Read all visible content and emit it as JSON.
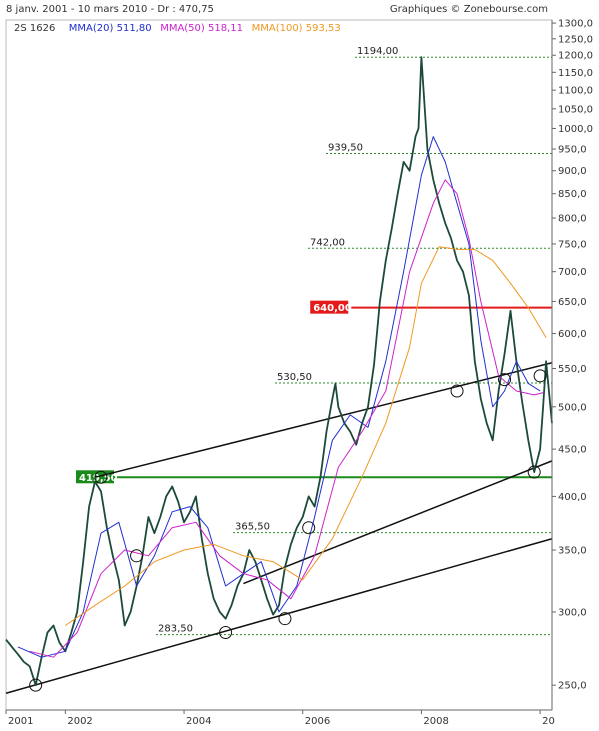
{
  "header": {
    "period": "8 janv. 2001 - 10 mars 2010 - Dr : 470,75",
    "credit": "Graphiques © Zonebourse.com",
    "legend": [
      {
        "text": "2S  1626",
        "color": "#333333"
      },
      {
        "text": "MMA(20) 511,80",
        "color": "#1f2fd0"
      },
      {
        "text": "MMA(50) 518,11",
        "color": "#cc22cc"
      },
      {
        "text": "MMA(100) 593,53",
        "color": "#ee9922"
      }
    ]
  },
  "chart_data": {
    "type": "line",
    "title": "",
    "xlabel": "",
    "ylabel": "",
    "xlim": [
      2001.0,
      2010.2
    ],
    "ylim": [
      235,
      1310
    ],
    "y_scale": "log",
    "x_ticks": [
      "2001",
      "2002",
      "2004",
      "2006",
      "2008",
      "20"
    ],
    "x_tick_values": [
      2001.0,
      2002.0,
      2004.0,
      2006.0,
      2008.0,
      2010.0
    ],
    "y_ticks": [
      250,
      300,
      350,
      400,
      450,
      500,
      550,
      600,
      650,
      700,
      750,
      800,
      850,
      900,
      950,
      1000,
      1050,
      1100,
      1150,
      1200,
      1250,
      1300
    ],
    "y_tick_labels": [
      "250,0",
      "300,0",
      "350,0",
      "400,0",
      "450,0",
      "500,0",
      "550,0",
      "600,0",
      "650,0",
      "700,0",
      "750,0",
      "800,0",
      "850,0",
      "900,0",
      "950,0",
      "1000,0",
      "1050,0",
      "1100,0",
      "1150,0",
      "1200,0",
      "1250,0",
      "1300,0"
    ],
    "grid": false,
    "series": [
      {
        "name": "2S",
        "color": "#1c4a3a",
        "x": [
          2001.0,
          2001.1,
          2001.2,
          2001.3,
          2001.4,
          2001.5,
          2001.6,
          2001.7,
          2001.8,
          2001.9,
          2002.0,
          2002.1,
          2002.2,
          2002.3,
          2002.4,
          2002.5,
          2002.6,
          2002.7,
          2002.8,
          2002.9,
          2003.0,
          2003.1,
          2003.2,
          2003.3,
          2003.4,
          2003.5,
          2003.6,
          2003.7,
          2003.8,
          2003.9,
          2004.0,
          2004.1,
          2004.2,
          2004.3,
          2004.4,
          2004.5,
          2004.6,
          2004.7,
          2004.8,
          2004.9,
          2005.0,
          2005.1,
          2005.2,
          2005.3,
          2005.4,
          2005.5,
          2005.6,
          2005.7,
          2005.8,
          2005.9,
          2006.0,
          2006.1,
          2006.2,
          2006.3,
          2006.4,
          2006.5,
          2006.55,
          2006.6,
          2006.7,
          2006.8,
          2006.9,
          2007.0,
          2007.1,
          2007.2,
          2007.3,
          2007.4,
          2007.5,
          2007.6,
          2007.7,
          2007.8,
          2007.9,
          2007.95,
          2008.0,
          2008.1,
          2008.2,
          2008.3,
          2008.4,
          2008.5,
          2008.6,
          2008.7,
          2008.8,
          2008.9,
          2009.0,
          2009.1,
          2009.2,
          2009.3,
          2009.4,
          2009.5,
          2009.6,
          2009.7,
          2009.8,
          2009.9,
          2010.0,
          2010.05,
          2010.1,
          2010.2
        ],
        "y": [
          280,
          275,
          270,
          265,
          262,
          250,
          268,
          285,
          290,
          278,
          272,
          285,
          300,
          340,
          390,
          415,
          405,
          370,
          345,
          325,
          290,
          300,
          320,
          345,
          380,
          365,
          380,
          400,
          410,
          395,
          375,
          385,
          400,
          360,
          330,
          310,
          300,
          295,
          305,
          320,
          330,
          350,
          340,
          325,
          310,
          298,
          305,
          335,
          355,
          370,
          380,
          400,
          390,
          420,
          470,
          510,
          530,
          500,
          480,
          470,
          455,
          480,
          500,
          555,
          650,
          720,
          780,
          850,
          920,
          900,
          980,
          1000,
          1194,
          950,
          880,
          830,
          790,
          760,
          720,
          700,
          660,
          560,
          510,
          480,
          460,
          520,
          570,
          635,
          560,
          505,
          460,
          425,
          450,
          500,
          560,
          480
        ]
      },
      {
        "name": "MMA(20)",
        "color": "#1f2fd0",
        "x": [
          2001.2,
          2001.6,
          2002.0,
          2002.3,
          2002.6,
          2002.9,
          2003.2,
          2003.5,
          2003.8,
          2004.1,
          2004.4,
          2004.7,
          2005.0,
          2005.3,
          2005.6,
          2005.9,
          2006.2,
          2006.5,
          2006.8,
          2007.1,
          2007.4,
          2007.7,
          2008.0,
          2008.2,
          2008.4,
          2008.6,
          2008.8,
          2009.0,
          2009.2,
          2009.4,
          2009.6,
          2009.8,
          2010.0
        ],
        "y": [
          275,
          268,
          272,
          300,
          365,
          375,
          320,
          345,
          385,
          390,
          370,
          320,
          330,
          340,
          300,
          320,
          380,
          460,
          490,
          475,
          560,
          700,
          890,
          980,
          920,
          830,
          750,
          590,
          500,
          520,
          560,
          530,
          520
        ]
      },
      {
        "name": "MMA(50)",
        "color": "#cc22cc",
        "x": [
          2001.4,
          2001.8,
          2002.2,
          2002.6,
          2003.0,
          2003.4,
          2003.8,
          2004.2,
          2004.6,
          2005.0,
          2005.4,
          2005.8,
          2006.2,
          2006.6,
          2007.0,
          2007.4,
          2007.8,
          2008.2,
          2008.4,
          2008.6,
          2008.8,
          2009.0,
          2009.3,
          2009.6,
          2009.9,
          2010.05
        ],
        "y": [
          272,
          268,
          285,
          330,
          350,
          345,
          370,
          375,
          345,
          330,
          325,
          310,
          345,
          430,
          470,
          520,
          700,
          830,
          880,
          850,
          760,
          650,
          540,
          520,
          515,
          518
        ]
      },
      {
        "name": "MMA(100)",
        "color": "#ee9922",
        "x": [
          2002.0,
          2002.5,
          2003.0,
          2003.5,
          2004.0,
          2004.5,
          2005.0,
          2005.5,
          2006.0,
          2006.5,
          2007.0,
          2007.4,
          2007.8,
          2008.0,
          2008.3,
          2008.6,
          2008.9,
          2009.2,
          2009.5,
          2009.8,
          2010.1
        ],
        "y": [
          290,
          305,
          320,
          340,
          350,
          355,
          345,
          340,
          325,
          360,
          420,
          480,
          580,
          680,
          745,
          740,
          740,
          720,
          680,
          640,
          594
        ]
      }
    ],
    "levels": [
      {
        "value": 1194,
        "label": "1194,00",
        "color": "#2e8b2e",
        "boxed": false
      },
      {
        "value": 939.5,
        "label": "939,50",
        "color": "#2e8b2e",
        "boxed": false
      },
      {
        "value": 742,
        "label": "742,00",
        "color": "#2e8b2e",
        "boxed": false
      },
      {
        "value": 640,
        "label": "640,00",
        "color": "#e41a1a",
        "boxed": true
      },
      {
        "value": 530.5,
        "label": "530,50",
        "color": "#2e8b2e",
        "boxed": false
      },
      {
        "value": 419.5,
        "label": "419,50",
        "color": "#1a8a1a",
        "boxed": true
      },
      {
        "value": 365.5,
        "label": "365,50",
        "color": "#2e8b2e",
        "boxed": false
      },
      {
        "value": 283.5,
        "label": "283,50",
        "color": "#2e8b2e",
        "boxed": false
      }
    ],
    "trendlines": [
      {
        "from": [
          2002.5,
          419.5
        ],
        "to": [
          2010.2,
          558
        ]
      },
      {
        "from": [
          2001.0,
          245
        ],
        "to": [
          2010.2,
          360
        ]
      },
      {
        "from": [
          2005.0,
          322
        ],
        "to": [
          2010.2,
          437
        ]
      }
    ],
    "markers": [
      {
        "x": 2001.5,
        "y": 250
      },
      {
        "x": 2002.6,
        "y": 419.5
      },
      {
        "x": 2003.2,
        "y": 345
      },
      {
        "x": 2004.7,
        "y": 285
      },
      {
        "x": 2005.7,
        "y": 295
      },
      {
        "x": 2006.1,
        "y": 370
      },
      {
        "x": 2008.6,
        "y": 520
      },
      {
        "x": 2009.4,
        "y": 535
      },
      {
        "x": 2009.9,
        "y": 425
      },
      {
        "x": 2010.0,
        "y": 540
      }
    ]
  }
}
